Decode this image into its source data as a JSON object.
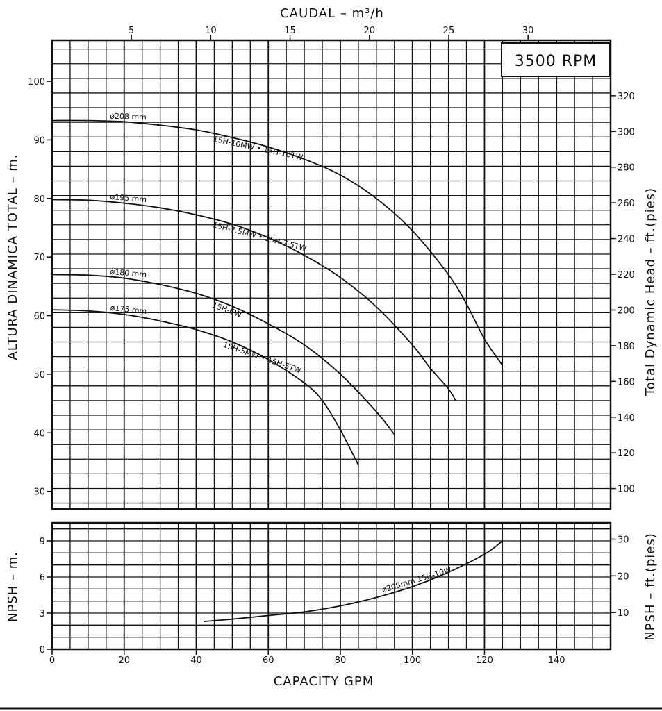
{
  "chart_data": [
    {
      "type": "line",
      "rpm_label": "3500 RPM",
      "x_top_label": "CAUDAL  – m³/h",
      "x_top_ticks": [
        "5",
        "10",
        "15",
        "20",
        "25",
        "30"
      ],
      "x_top_tick_values": [
        5,
        10,
        15,
        20,
        25,
        30
      ],
      "ylabel_left": "ALTURA DINAMICA TOTAL – m.",
      "ylabel_right": "Total Dynamic Head – ft.(pies)",
      "y_left_ticks": [
        "30",
        "40",
        "50",
        "60",
        "70",
        "80",
        "90",
        "100"
      ],
      "y_left_tick_values": [
        30,
        40,
        50,
        60,
        70,
        80,
        90,
        100
      ],
      "y_right_ticks": [
        "100",
        "120",
        "140",
        "160",
        "180",
        "200",
        "220",
        "240",
        "260",
        "280",
        "300",
        "320"
      ],
      "y_right_tick_values_ft": [
        100,
        120,
        140,
        160,
        180,
        200,
        220,
        240,
        260,
        280,
        300,
        320
      ],
      "xlim": [
        0,
        155
      ],
      "ylim": [
        27,
        107
      ],
      "grid": true,
      "series": [
        {
          "name": "ø208 mm",
          "models": [
            "15H-10MW",
            "15H-10TW"
          ],
          "x": [
            0,
            10,
            20,
            30,
            40,
            50,
            60,
            70,
            80,
            90,
            100,
            110,
            115,
            120,
            125
          ],
          "values": [
            93.3,
            93.3,
            93.1,
            92.5,
            91.7,
            90.4,
            88.8,
            86.7,
            84.0,
            80.0,
            74.5,
            67.0,
            62.0,
            56.0,
            51.5
          ]
        },
        {
          "name": "ø195 mm",
          "models": [
            "15H-7.5MW",
            "15H-7.5TW"
          ],
          "x": [
            0,
            10,
            20,
            30,
            40,
            50,
            60,
            70,
            80,
            90,
            100,
            105,
            110,
            112
          ],
          "values": [
            79.8,
            79.7,
            79.2,
            78.4,
            77.2,
            75.6,
            73.3,
            70.3,
            66.5,
            61.5,
            55.0,
            51.0,
            47.5,
            45.5
          ]
        },
        {
          "name": "ø180 mm",
          "models": [
            "15H-6W"
          ],
          "x": [
            0,
            10,
            20,
            30,
            40,
            50,
            60,
            70,
            80,
            90,
            95
          ],
          "values": [
            67.0,
            66.9,
            66.4,
            65.3,
            63.8,
            61.6,
            58.6,
            55.0,
            50.0,
            43.6,
            39.7
          ]
        },
        {
          "name": "ø175 mm",
          "models": [
            "15H-5MW",
            "15H-5TW"
          ],
          "x": [
            0,
            10,
            20,
            30,
            40,
            50,
            60,
            70,
            75,
            80,
            85
          ],
          "values": [
            61.0,
            60.8,
            60.2,
            59.1,
            57.6,
            55.5,
            52.5,
            48.5,
            45.5,
            40.5,
            34.5
          ]
        }
      ],
      "annotations": [
        {
          "text": "15H-10MW • 15H-10TW",
          "series": "ø208 mm"
        },
        {
          "text": "15H-7.5MW • 15H-7.5TW",
          "series": "ø195 mm"
        },
        {
          "text": "15H-6W",
          "series": "ø180 mm"
        },
        {
          "text": "15H-5MW • 15H-5TW",
          "series": "ø175 mm"
        }
      ],
      "vertical_marker_x": 75
    },
    {
      "type": "line",
      "xlabel": "CAPACITY GPM",
      "ylabel_left": "NPSH – m.",
      "ylabel_right": "NPSH – ft.(pies)",
      "x_ticks": [
        "0",
        "20",
        "40",
        "60",
        "80",
        "100",
        "120",
        "140"
      ],
      "x_tick_values": [
        0,
        20,
        40,
        60,
        80,
        100,
        120,
        140
      ],
      "y_left_ticks": [
        "0",
        "3",
        "6",
        "9"
      ],
      "y_left_tick_values": [
        0,
        3,
        6,
        9
      ],
      "y_right_ticks": [
        "10",
        "20",
        "30"
      ],
      "y_right_tick_values_ft": [
        10,
        20,
        30
      ],
      "xlim": [
        0,
        155
      ],
      "ylim": [
        0,
        10.5
      ],
      "grid": true,
      "series": [
        {
          "name": "ø208mm 15H-10W",
          "x": [
            42,
            50,
            60,
            70,
            80,
            90,
            100,
            110,
            120,
            125
          ],
          "values": [
            2.3,
            2.5,
            2.8,
            3.1,
            3.6,
            4.3,
            5.2,
            6.4,
            7.9,
            9.0
          ]
        }
      ]
    }
  ]
}
